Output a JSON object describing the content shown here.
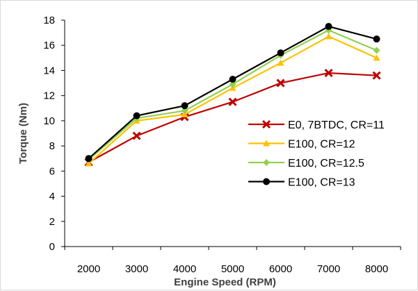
{
  "chart_data": {
    "type": "line",
    "title": "",
    "xlabel": "Engine Speed (RPM)",
    "ylabel": "Torque (Nm)",
    "categories": [
      "2000",
      "3000",
      "4000",
      "5000",
      "6000",
      "7000",
      "8000"
    ],
    "ylim": [
      0,
      18
    ],
    "yticks": [
      0,
      2,
      4,
      6,
      8,
      10,
      12,
      14,
      16,
      18
    ],
    "grid": false,
    "legend_position": "right",
    "series": [
      {
        "name": "E0, 7BTDC, CR=11",
        "color": "#c00000",
        "marker": "x",
        "values": [
          6.7,
          8.8,
          10.3,
          11.5,
          13.0,
          13.8,
          13.6
        ]
      },
      {
        "name": "E100, CR=12",
        "color": "#ffc000",
        "marker": "triangle",
        "values": [
          6.6,
          10.0,
          10.5,
          12.6,
          14.6,
          16.7,
          15.0
        ]
      },
      {
        "name": "E100, CR=12.5",
        "color": "#92d050",
        "marker": "diamond",
        "values": [
          6.9,
          10.2,
          10.8,
          12.9,
          15.2,
          17.2,
          15.6
        ]
      },
      {
        "name": "E100, CR=13",
        "color": "#000000",
        "marker": "circle",
        "values": [
          7.0,
          10.4,
          11.2,
          13.3,
          15.4,
          17.5,
          16.5
        ]
      }
    ]
  }
}
